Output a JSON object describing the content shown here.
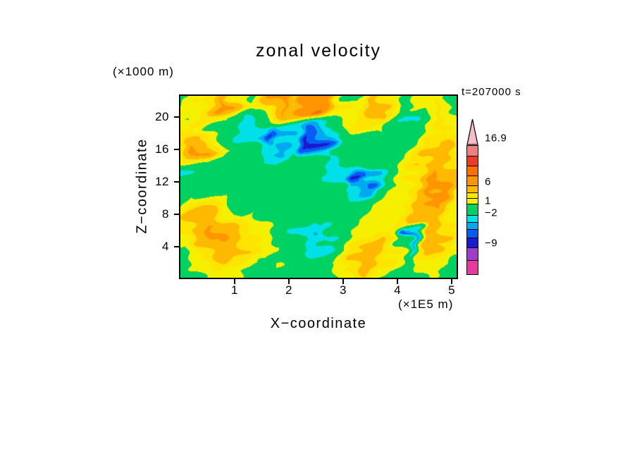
{
  "chart_data": {
    "type": "heatmap",
    "title": "zonal velocity",
    "xlabel": "X−coordinate",
    "ylabel": "Z−coordinate",
    "x_units": "(×1E5 m)",
    "y_units": "(×1000 m)",
    "timestamp": "t=207000 s",
    "xlim": [
      0,
      5.09
    ],
    "zlim": [
      0.2,
      22.6
    ],
    "xticks": [
      1,
      2,
      3,
      4,
      5
    ],
    "zticks": [
      4,
      8,
      12,
      16,
      20
    ],
    "grid_on": false,
    "legend_position": "right",
    "levels": [
      -11,
      -9,
      -7,
      -5,
      -3.5,
      -2,
      1,
      2.5,
      4,
      6,
      8,
      10,
      13,
      16.9
    ],
    "band_colors": [
      "#E8399F",
      "#A03CC8",
      "#1A1AD2",
      "#0A5AF5",
      "#00A8F0",
      "#00E0E8",
      "#00D163",
      "#F5F000",
      "#FFE400",
      "#FFB900",
      "#FF9500",
      "#FF6F00",
      "#F03A28",
      "#F08080",
      "#F6BCC8"
    ],
    "grid": {
      "x_range": [
        0,
        5.09
      ],
      "z_range": [
        0.2,
        22.6
      ],
      "values": [
        [
          0,
          0,
          2,
          3,
          6,
          2,
          0,
          2,
          6,
          7,
          3,
          7,
          7,
          6,
          2,
          0,
          2,
          6,
          3,
          0,
          0,
          2,
          2,
          0,
          0
        ],
        [
          0,
          2,
          3,
          5,
          7,
          3,
          2,
          3,
          5,
          6,
          5,
          8,
          9,
          7,
          3,
          2,
          3,
          5,
          3,
          2,
          0,
          2,
          3,
          2,
          0
        ],
        [
          2,
          3,
          3,
          2,
          0,
          -1,
          -3,
          -3,
          -4,
          -3,
          -3,
          -4,
          -3,
          -2,
          0,
          2,
          3,
          2,
          0,
          -2,
          -3,
          0,
          2,
          3,
          2
        ],
        [
          3,
          2,
          1,
          0,
          -1,
          -2,
          -3,
          -4,
          -8,
          -4,
          -3,
          -8,
          -8,
          -6,
          -3,
          -1,
          0,
          1,
          0,
          -1,
          0,
          1,
          3,
          2,
          2
        ],
        [
          4,
          6,
          7,
          5,
          3,
          1,
          0,
          -2,
          -3,
          -2,
          -1,
          -2,
          -3,
          -2,
          -1,
          0,
          0,
          1,
          0,
          0,
          1,
          2,
          4,
          5,
          4
        ],
        [
          -2,
          0,
          1,
          0,
          0,
          -1,
          0,
          0,
          -1,
          0,
          -1,
          0,
          -1,
          -2,
          -3,
          -4,
          -3,
          -1,
          0,
          1,
          2,
          4,
          6,
          5,
          3
        ],
        [
          -3,
          -1,
          0,
          1,
          0,
          0,
          -1,
          0,
          0,
          0,
          -1,
          0,
          -1,
          -2,
          -3,
          -8,
          -8,
          -3,
          -1,
          1,
          3,
          5,
          7,
          6,
          4
        ],
        [
          0,
          1,
          0,
          0,
          1,
          0,
          0,
          -1,
          0,
          -1,
          0,
          0,
          0,
          -1,
          0,
          -2,
          -1,
          0,
          1,
          2,
          3,
          4,
          7,
          6,
          3
        ],
        [
          1,
          2,
          3,
          2,
          1,
          0,
          1,
          0,
          0,
          -1,
          0,
          -1,
          0,
          0,
          -1,
          0,
          0,
          1,
          2,
          2,
          3,
          5,
          6,
          4,
          2
        ],
        [
          3,
          5,
          6,
          6,
          4,
          3,
          2,
          1,
          0,
          -1,
          -2,
          -3,
          -2,
          -3,
          -1,
          0,
          1,
          2,
          2,
          3,
          4,
          6,
          5,
          3,
          2
        ],
        [
          2,
          4,
          5,
          7,
          5,
          4,
          3,
          2,
          1,
          0,
          -2,
          -3,
          -4,
          -2,
          0,
          2,
          3,
          4,
          3,
          2,
          -7,
          4,
          6,
          4,
          2
        ],
        [
          1,
          3,
          5,
          6,
          6,
          5,
          3,
          2,
          2,
          1,
          0,
          -2,
          -2,
          -1,
          1,
          3,
          5,
          6,
          4,
          2,
          -3,
          3,
          5,
          3,
          1
        ],
        [
          0,
          1,
          2,
          3,
          4,
          3,
          2,
          1,
          1,
          0,
          1,
          1,
          0,
          1,
          2,
          4,
          6,
          4,
          2,
          1,
          0,
          2,
          3,
          2,
          1
        ],
        [
          0,
          0,
          1,
          2,
          2,
          1,
          0,
          0,
          1,
          0,
          0,
          1,
          0,
          0,
          1,
          2,
          2,
          1,
          0,
          0,
          0,
          1,
          1,
          0,
          0
        ]
      ]
    },
    "colorbar": {
      "arrow_color": "#F6BCC8",
      "bands": [
        {
          "color": "#F08080",
          "h": 14
        },
        {
          "color": "#F03A28",
          "h": 14
        },
        {
          "color": "#FF6F00",
          "h": 14
        },
        {
          "color": "#FF9500",
          "h": 14
        },
        {
          "color": "#FFB900",
          "h": 10
        },
        {
          "color": "#FFE400",
          "h": 8
        },
        {
          "color": "#F5F000",
          "h": 8
        },
        {
          "color": "#00D163",
          "h": 16
        },
        {
          "color": "#00E0E8",
          "h": 10
        },
        {
          "color": "#00A8F0",
          "h": 10
        },
        {
          "color": "#0A5AF5",
          "h": 12
        },
        {
          "color": "#1A1AD2",
          "h": 14
        },
        {
          "color": "#A03CC8",
          "h": 18
        },
        {
          "color": "#E8399F",
          "h": 20
        }
      ],
      "labels": [
        {
          "text": "16.9",
          "offset": 28
        },
        {
          "text": "6",
          "offset": 90
        },
        {
          "text": "1",
          "offset": 117
        },
        {
          "text": "−2",
          "offset": 134
        },
        {
          "text": "−9",
          "offset": 177
        }
      ]
    }
  }
}
